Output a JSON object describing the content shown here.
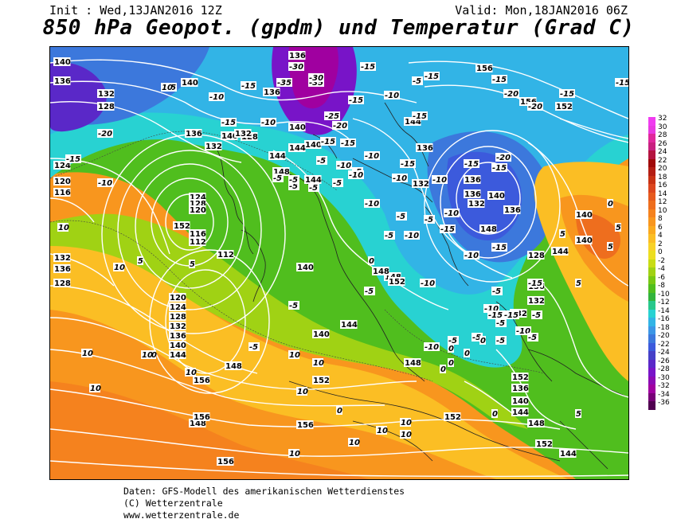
{
  "header": {
    "init": "Init : Wed,13JAN2016 12Z",
    "valid": "Valid: Mon,18JAN2016 06Z",
    "title": "850 hPa Geopot. (gpdm) und Temperatur (Grad C)"
  },
  "legend": {
    "values": [
      "32",
      "30",
      "28",
      "26",
      "24",
      "22",
      "20",
      "18",
      "16",
      "14",
      "12",
      "10",
      "8",
      "6",
      "4",
      "2",
      "0",
      "-2",
      "-4",
      "-6",
      "-8",
      "-10",
      "-12",
      "-14",
      "-16",
      "-18",
      "-20",
      "-22",
      "-24",
      "-26",
      "-28",
      "-30",
      "-32",
      "-34",
      "-36"
    ],
    "colors": [
      "#f03cf0",
      "#e83ae0",
      "#e0289c",
      "#c82080",
      "#b41440",
      "#a00a0a",
      "#b41e14",
      "#c83214",
      "#dc461e",
      "#e65a1e",
      "#ee6e1e",
      "#f5821e",
      "#f8961e",
      "#faaa1e",
      "#fbbe24",
      "#f8d228",
      "#ecde20",
      "#c8dc14",
      "#a0d214",
      "#78c814",
      "#50be1e",
      "#32b43c",
      "#28c88c",
      "#28d2d2",
      "#32b4e6",
      "#3c96e6",
      "#3c78dc",
      "#3c5adc",
      "#4640c8",
      "#5a28c8",
      "#7814c8",
      "#8c0ab4",
      "#a000a0",
      "#780078",
      "#500050"
    ]
  },
  "geopotential_labels": [
    "140",
    "136",
    "132",
    "128",
    "124",
    "120",
    "116",
    "112",
    "144",
    "148",
    "152",
    "156",
    "136",
    "140",
    "144",
    "148",
    "156",
    "132",
    "140",
    "136",
    "128",
    "136",
    "132",
    "148",
    "140",
    "144",
    "144",
    "140",
    "136",
    "132",
    "124",
    "128",
    "120",
    "112",
    "116",
    "120",
    "124",
    "128",
    "132",
    "136",
    "140",
    "144",
    "148",
    "152",
    "156",
    "156",
    "156",
    "140",
    "132",
    "136",
    "128",
    "140",
    "144",
    "148",
    "152",
    "148",
    "152",
    "152",
    "136",
    "140",
    "144",
    "148",
    "152",
    "144",
    "140",
    "136",
    "132",
    "128",
    "136",
    "140",
    "148",
    "144",
    "156",
    "152",
    "136",
    "132",
    "132",
    "136",
    "140"
  ],
  "temperature_labels": [
    "-15",
    "-15",
    "-10",
    "-20",
    "-15",
    "-10",
    "-15",
    "-10",
    "-5",
    "-5",
    "-30",
    "-35",
    "-35",
    "-30",
    "-25",
    "-20",
    "-15",
    "-15",
    "-15",
    "-20",
    "-15",
    "-10",
    "-5",
    "-10",
    "-5",
    "-5",
    "-5",
    "-5",
    "-10",
    "-10",
    "-15",
    "-10",
    "-5",
    "-10",
    "-5",
    "-15",
    "-15",
    "-20",
    "-15",
    "-15",
    "-20",
    "-15",
    "-15",
    "-10",
    "-5",
    "-10",
    "-15",
    "-15",
    "-10",
    "-5",
    "-10",
    "-5",
    "-10",
    "-15",
    "-15",
    "-5",
    "-10",
    "-15",
    "-5",
    "-10",
    "-5",
    "-5",
    "-5",
    "-5",
    "-5",
    "-10",
    "-15",
    "0",
    "0",
    "0",
    "0",
    "0",
    "0",
    "5",
    "5",
    "5",
    "5",
    "10",
    "10",
    "10",
    "10",
    "10",
    "10",
    "10",
    "10",
    "10",
    "10",
    "10",
    "10",
    "10",
    "10",
    "10",
    "-5",
    "-5",
    "0",
    "0",
    "0",
    "5",
    "5",
    "5",
    "10"
  ],
  "footer": {
    "line1": "Daten: GFS-Modell des amerikanischen Wetterdienstes",
    "line2": "(C) Wetterzentrale",
    "line3": "www.wetterzentrale.de"
  }
}
